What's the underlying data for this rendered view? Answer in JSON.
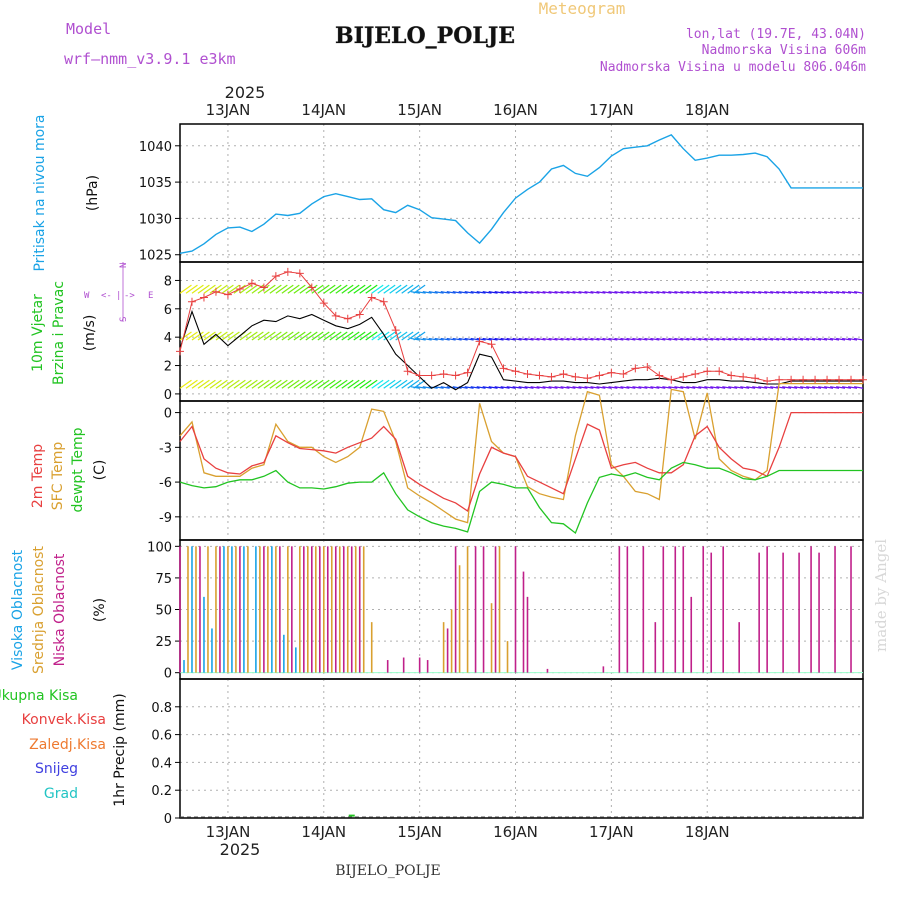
{
  "header": {
    "model_label": "Model",
    "model_name": "wrf–nmm_v3.9.1  e3km",
    "station": "BIJELO_POLJE",
    "meteogram": "Meteogram",
    "lonlat": "lon,lat (19.7E, 43.04N)",
    "elevation": "Nadmorska Visina 606m",
    "model_elevation": "Nadmorska Visina u modelu 806.046m",
    "footer_station": "BIJELO_POLJE",
    "watermark": "made by Angel",
    "year": "2025"
  },
  "colors": {
    "pressure": "#1aa3e6",
    "temp2m": "#e84040",
    "sfc": "#d9a030",
    "dew": "#22c422",
    "high_cloud": "#1aa3e6",
    "mid_cloud": "#d9a030",
    "low_cloud": "#c0208a",
    "wind_mark": "#e84040",
    "wind_line": "#000000",
    "ukupna": "#22c422",
    "konvek": "#e84040",
    "zaledj": "#ee7a30",
    "snijeg": "#4040e0",
    "grad": "#22c4c4",
    "label_purple": "#b050d0"
  },
  "chart_data": {
    "type": "line",
    "x_labels": [
      "13JAN",
      "14JAN",
      "15JAN",
      "16JAN",
      "17JAN",
      "18JAN"
    ],
    "panels": {
      "pressure": {
        "title": "Pritisak na nivou mora",
        "unit": "(hPa)",
        "ylim": [
          1024,
          1043
        ],
        "yticks": [
          1025,
          1030,
          1035,
          1040
        ],
        "x": [
          0,
          3,
          6,
          9,
          12,
          15,
          18,
          21,
          24,
          27,
          30,
          33,
          36,
          39,
          42,
          45,
          48,
          51,
          54,
          57,
          60,
          63,
          66,
          69,
          72,
          75,
          78,
          81,
          84,
          87,
          90,
          93,
          96,
          99,
          102,
          105,
          108,
          111,
          114,
          117,
          120,
          123,
          126,
          129,
          132,
          135,
          138,
          141,
          144,
          147,
          150,
          153,
          156,
          159,
          162,
          165,
          168,
          171
        ],
        "values": [
          1025.2,
          1025.5,
          1026.5,
          1027.8,
          1028.7,
          1028.8,
          1028.2,
          1029.2,
          1030.6,
          1030.4,
          1030.7,
          1032.0,
          1033.0,
          1033.4,
          1033.0,
          1032.6,
          1032.7,
          1031.2,
          1030.8,
          1031.8,
          1031.2,
          1030.1,
          1029.9,
          1029.7,
          1028.0,
          1026.6,
          1028.5,
          1030.8,
          1032.8,
          1034.0,
          1035.0,
          1036.8,
          1037.3,
          1036.2,
          1035.8,
          1037.0,
          1038.6,
          1039.6,
          1039.8,
          1040.0,
          1040.8,
          1041.5,
          1039.6,
          1038.0,
          1038.3,
          1038.7,
          1038.7,
          1038.8,
          1039.0,
          1038.5,
          1036.8,
          1034.2,
          1034.2,
          1034.2,
          1034.2,
          1034.2,
          1034.2,
          1034.2
        ]
      },
      "wind": {
        "title": "10m Vjetar",
        "title2": "Brzina i Pravac",
        "unit": "(m/s)",
        "compass": [
          "W",
          "<-",
          "|",
          "->",
          "E",
          "S",
          "N"
        ],
        "ylim": [
          -0.5,
          9.3
        ],
        "yticks": [
          0,
          2,
          4,
          6,
          8
        ],
        "x": [
          0,
          3,
          6,
          9,
          12,
          15,
          18,
          21,
          24,
          27,
          30,
          33,
          36,
          39,
          42,
          45,
          48,
          51,
          54,
          57,
          60,
          63,
          66,
          69,
          72,
          75,
          78,
          81,
          84,
          87,
          90,
          93,
          96,
          99,
          102,
          105,
          108,
          111,
          114,
          117,
          120,
          123,
          126,
          129,
          132,
          135,
          138,
          141,
          144,
          147,
          150,
          153,
          156,
          159,
          162,
          165,
          168,
          171
        ],
        "speed": [
          3.2,
          5.8,
          3.5,
          4.2,
          3.4,
          4.1,
          4.8,
          5.2,
          5.1,
          5.5,
          5.3,
          5.6,
          5.2,
          4.8,
          4.6,
          4.9,
          5.4,
          4.2,
          2.8,
          2.0,
          1.2,
          0.4,
          0.8,
          0.3,
          0.8,
          2.8,
          2.6,
          1.0,
          0.9,
          0.8,
          0.8,
          0.9,
          0.9,
          0.8,
          0.8,
          0.7,
          0.8,
          0.9,
          1.0,
          1.0,
          1.1,
          1.0,
          0.8,
          0.8,
          1.0,
          1.0,
          0.9,
          0.9,
          0.8,
          0.7,
          0.7,
          0.9,
          0.9,
          0.9,
          0.9,
          0.9,
          0.9,
          0.9
        ],
        "gust": [
          3.0,
          6.5,
          6.8,
          7.2,
          7.0,
          7.4,
          7.8,
          7.5,
          8.3,
          8.6,
          8.5,
          7.5,
          6.4,
          5.5,
          5.3,
          5.6,
          6.8,
          6.5,
          4.5,
          1.6,
          1.3,
          1.3,
          1.4,
          1.3,
          1.5,
          3.7,
          3.5,
          1.8,
          1.6,
          1.4,
          1.3,
          1.2,
          1.4,
          1.2,
          1.1,
          1.3,
          1.5,
          1.4,
          1.8,
          1.9,
          1.3,
          1.0,
          1.2,
          1.4,
          1.6,
          1.6,
          1.3,
          1.2,
          1.1,
          0.9,
          1.0,
          1.0,
          1.0,
          1.0,
          1.0,
          1.0,
          1.0,
          1.0
        ]
      },
      "temperature": {
        "series_labels": [
          "2m Temp",
          "SFC Temp",
          "dewpt Temp"
        ],
        "unit": "(C)",
        "ylim": [
          -11,
          1
        ],
        "yticks": [
          0,
          -3,
          -6,
          -9
        ],
        "x": [
          0,
          3,
          6,
          9,
          12,
          15,
          18,
          21,
          24,
          27,
          30,
          33,
          36,
          39,
          42,
          45,
          48,
          51,
          54,
          57,
          60,
          63,
          66,
          69,
          72,
          75,
          78,
          81,
          84,
          87,
          90,
          93,
          96,
          99,
          102,
          105,
          108,
          111,
          114,
          117,
          120,
          123,
          126,
          129,
          132,
          135,
          138,
          141,
          144,
          147,
          150,
          153,
          156,
          159,
          162,
          165,
          168,
          171
        ],
        "t2m": [
          -2.5,
          -1.2,
          -4.0,
          -4.8,
          -5.2,
          -5.3,
          -4.6,
          -4.3,
          -2.0,
          -2.6,
          -3.1,
          -3.2,
          -3.3,
          -3.5,
          -3.0,
          -2.6,
          -2.2,
          -1.2,
          -2.3,
          -5.5,
          -6.2,
          -6.8,
          -7.4,
          -7.8,
          -8.5,
          -5.3,
          -3.0,
          -3.5,
          -3.8,
          -5.5,
          -6.0,
          -6.5,
          -7.0,
          -4.0,
          -1.0,
          -1.5,
          -4.8,
          -4.5,
          -4.3,
          -4.8,
          -5.2,
          -5.2,
          -4.5,
          -2.0,
          -1.2,
          -3.0,
          -4.0,
          -4.8,
          -5.0,
          -5.5,
          -3.0,
          0.0,
          0.0,
          0.0,
          0.0,
          0.0,
          0.0,
          0.0
        ],
        "sfc": [
          -2.0,
          -0.8,
          -5.2,
          -5.5,
          -5.5,
          -5.5,
          -4.8,
          -4.5,
          -1.0,
          -2.5,
          -3.0,
          -3.0,
          -3.8,
          -4.3,
          -3.8,
          -3.0,
          0.3,
          0.1,
          -2.5,
          -6.5,
          -7.2,
          -7.8,
          -8.5,
          -9.2,
          -9.5,
          0.8,
          -2.5,
          -3.5,
          -3.8,
          -6.4,
          -7.0,
          -7.3,
          -7.5,
          -2.0,
          1.8,
          1.5,
          -4.5,
          -5.5,
          -6.8,
          -7.0,
          -7.5,
          2.0,
          1.8,
          -2.3,
          1.7,
          -4.0,
          -5.0,
          -5.5,
          -5.8,
          -5.0,
          2.5,
          2.5,
          2.5,
          2.5,
          2.5,
          2.5,
          2.5,
          2.5
        ],
        "dew": [
          -6.0,
          -6.3,
          -6.5,
          -6.4,
          -6.0,
          -5.8,
          -5.8,
          -5.5,
          -5.0,
          -6.0,
          -6.5,
          -6.5,
          -6.6,
          -6.4,
          -6.1,
          -6.0,
          -6.0,
          -5.2,
          -7.0,
          -8.4,
          -9.0,
          -9.5,
          -9.8,
          -10.0,
          -10.3,
          -6.8,
          -6.0,
          -6.2,
          -6.5,
          -6.5,
          -8.2,
          -9.5,
          -9.6,
          -10.4,
          -7.8,
          -5.6,
          -5.3,
          -5.5,
          -5.2,
          -5.6,
          -5.8,
          -4.8,
          -4.3,
          -4.5,
          -4.8,
          -4.8,
          -5.2,
          -5.7,
          -5.8,
          -5.5,
          -5.0,
          -5.0,
          -5.0,
          -5.0,
          -5.0,
          -5.0,
          -5.0,
          -5.0
        ]
      },
      "clouds": {
        "series_labels": [
          "Visoka Oblacnost",
          "Srednja Oblacnost",
          "Niska Oblacnost"
        ],
        "unit": "(%)",
        "ylim": [
          -5,
          105
        ],
        "yticks": [
          0,
          25,
          50,
          75,
          100
        ],
        "high": [
          [
            1,
            10
          ],
          [
            3,
            100
          ],
          [
            6,
            60
          ],
          [
            8,
            35
          ],
          [
            11,
            100
          ],
          [
            13,
            100
          ],
          [
            16,
            100
          ],
          [
            19,
            100
          ],
          [
            23,
            100
          ],
          [
            26,
            30
          ],
          [
            29,
            20
          ]
        ],
        "mid": [
          [
            2,
            100
          ],
          [
            4,
            100
          ],
          [
            7,
            100
          ],
          [
            9,
            100
          ],
          [
            12,
            100
          ],
          [
            14,
            100
          ],
          [
            17,
            100
          ],
          [
            20,
            100
          ],
          [
            22,
            100
          ],
          [
            24,
            100
          ],
          [
            27,
            100
          ],
          [
            30,
            100
          ],
          [
            32,
            100
          ],
          [
            34,
            100
          ],
          [
            36,
            100
          ],
          [
            38,
            100
          ],
          [
            40,
            100
          ],
          [
            42,
            100
          ],
          [
            44,
            100
          ],
          [
            46,
            100
          ],
          [
            48,
            40
          ],
          [
            66,
            40
          ],
          [
            68,
            50
          ],
          [
            70,
            85
          ],
          [
            72,
            100
          ],
          [
            78,
            55
          ],
          [
            80,
            100
          ],
          [
            82,
            25
          ]
        ],
        "low": [
          [
            0,
            100
          ],
          [
            5,
            100
          ],
          [
            10,
            100
          ],
          [
            15,
            100
          ],
          [
            21,
            100
          ],
          [
            25,
            100
          ],
          [
            28,
            100
          ],
          [
            31,
            100
          ],
          [
            33,
            100
          ],
          [
            35,
            100
          ],
          [
            37,
            100
          ],
          [
            39,
            100
          ],
          [
            41,
            100
          ],
          [
            43,
            100
          ],
          [
            45,
            100
          ],
          [
            52,
            10
          ],
          [
            56,
            12
          ],
          [
            60,
            12
          ],
          [
            62,
            10
          ],
          [
            67,
            35
          ],
          [
            69,
            100
          ],
          [
            74,
            100
          ],
          [
            76,
            100
          ],
          [
            79,
            100
          ],
          [
            84,
            100
          ],
          [
            86,
            80
          ],
          [
            87,
            60
          ],
          [
            92,
            3
          ],
          [
            106,
            5
          ],
          [
            110,
            100
          ],
          [
            112,
            100
          ],
          [
            116,
            100
          ],
          [
            119,
            40
          ],
          [
            121,
            100
          ],
          [
            124,
            100
          ],
          [
            126,
            100
          ],
          [
            128,
            60
          ],
          [
            131,
            100
          ],
          [
            133,
            95
          ],
          [
            136,
            100
          ],
          [
            140,
            40
          ],
          [
            145,
            95
          ],
          [
            147,
            100
          ],
          [
            151,
            95
          ],
          [
            155,
            95
          ],
          [
            158,
            100
          ],
          [
            160,
            95
          ],
          [
            164,
            100
          ],
          [
            168,
            100
          ]
        ]
      },
      "precip": {
        "series_labels": [
          "Ukupna Kisa",
          "Konvek.Kisa",
          "Zaledj.Kisa",
          "Snijeg",
          "Grad"
        ],
        "ylabel": "1hr Precip (mm)",
        "ylim": [
          0,
          1
        ],
        "yticks": [
          0,
          0.2,
          0.4,
          0.6,
          0.8
        ],
        "ytick_labels": [
          "0",
          "0.2",
          "0.4",
          "0.6",
          "0.8"
        ],
        "values": [
          [
            43,
            0.01
          ]
        ]
      }
    }
  }
}
